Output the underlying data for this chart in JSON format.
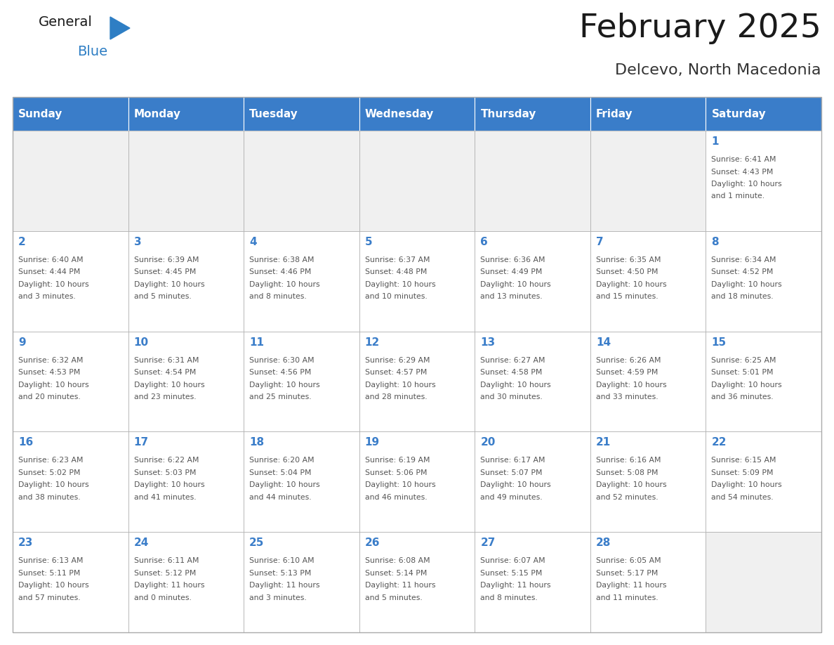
{
  "title": "February 2025",
  "subtitle": "Delcevo, North Macedonia",
  "days_of_week": [
    "Sunday",
    "Monday",
    "Tuesday",
    "Wednesday",
    "Thursday",
    "Friday",
    "Saturday"
  ],
  "header_bg": "#3A7DC9",
  "header_text": "#FFFFFF",
  "cell_bg": "#FFFFFF",
  "empty_cell_bg": "#F0F0F0",
  "cell_border": "#AAAAAA",
  "day_num_color": "#3A7DC9",
  "info_text_color": "#555555",
  "title_color": "#1a1a1a",
  "subtitle_color": "#333333",
  "logo_general_color": "#1a1a1a",
  "logo_blue_color": "#2E7EC4",
  "logo_triangle_color": "#2E7EC4",
  "background": "#FFFFFF",
  "weeks": [
    [
      {
        "day": null,
        "info": ""
      },
      {
        "day": null,
        "info": ""
      },
      {
        "day": null,
        "info": ""
      },
      {
        "day": null,
        "info": ""
      },
      {
        "day": null,
        "info": ""
      },
      {
        "day": null,
        "info": ""
      },
      {
        "day": 1,
        "info": "Sunrise: 6:41 AM\nSunset: 4:43 PM\nDaylight: 10 hours\nand 1 minute."
      }
    ],
    [
      {
        "day": 2,
        "info": "Sunrise: 6:40 AM\nSunset: 4:44 PM\nDaylight: 10 hours\nand 3 minutes."
      },
      {
        "day": 3,
        "info": "Sunrise: 6:39 AM\nSunset: 4:45 PM\nDaylight: 10 hours\nand 5 minutes."
      },
      {
        "day": 4,
        "info": "Sunrise: 6:38 AM\nSunset: 4:46 PM\nDaylight: 10 hours\nand 8 minutes."
      },
      {
        "day": 5,
        "info": "Sunrise: 6:37 AM\nSunset: 4:48 PM\nDaylight: 10 hours\nand 10 minutes."
      },
      {
        "day": 6,
        "info": "Sunrise: 6:36 AM\nSunset: 4:49 PM\nDaylight: 10 hours\nand 13 minutes."
      },
      {
        "day": 7,
        "info": "Sunrise: 6:35 AM\nSunset: 4:50 PM\nDaylight: 10 hours\nand 15 minutes."
      },
      {
        "day": 8,
        "info": "Sunrise: 6:34 AM\nSunset: 4:52 PM\nDaylight: 10 hours\nand 18 minutes."
      }
    ],
    [
      {
        "day": 9,
        "info": "Sunrise: 6:32 AM\nSunset: 4:53 PM\nDaylight: 10 hours\nand 20 minutes."
      },
      {
        "day": 10,
        "info": "Sunrise: 6:31 AM\nSunset: 4:54 PM\nDaylight: 10 hours\nand 23 minutes."
      },
      {
        "day": 11,
        "info": "Sunrise: 6:30 AM\nSunset: 4:56 PM\nDaylight: 10 hours\nand 25 minutes."
      },
      {
        "day": 12,
        "info": "Sunrise: 6:29 AM\nSunset: 4:57 PM\nDaylight: 10 hours\nand 28 minutes."
      },
      {
        "day": 13,
        "info": "Sunrise: 6:27 AM\nSunset: 4:58 PM\nDaylight: 10 hours\nand 30 minutes."
      },
      {
        "day": 14,
        "info": "Sunrise: 6:26 AM\nSunset: 4:59 PM\nDaylight: 10 hours\nand 33 minutes."
      },
      {
        "day": 15,
        "info": "Sunrise: 6:25 AM\nSunset: 5:01 PM\nDaylight: 10 hours\nand 36 minutes."
      }
    ],
    [
      {
        "day": 16,
        "info": "Sunrise: 6:23 AM\nSunset: 5:02 PM\nDaylight: 10 hours\nand 38 minutes."
      },
      {
        "day": 17,
        "info": "Sunrise: 6:22 AM\nSunset: 5:03 PM\nDaylight: 10 hours\nand 41 minutes."
      },
      {
        "day": 18,
        "info": "Sunrise: 6:20 AM\nSunset: 5:04 PM\nDaylight: 10 hours\nand 44 minutes."
      },
      {
        "day": 19,
        "info": "Sunrise: 6:19 AM\nSunset: 5:06 PM\nDaylight: 10 hours\nand 46 minutes."
      },
      {
        "day": 20,
        "info": "Sunrise: 6:17 AM\nSunset: 5:07 PM\nDaylight: 10 hours\nand 49 minutes."
      },
      {
        "day": 21,
        "info": "Sunrise: 6:16 AM\nSunset: 5:08 PM\nDaylight: 10 hours\nand 52 minutes."
      },
      {
        "day": 22,
        "info": "Sunrise: 6:15 AM\nSunset: 5:09 PM\nDaylight: 10 hours\nand 54 minutes."
      }
    ],
    [
      {
        "day": 23,
        "info": "Sunrise: 6:13 AM\nSunset: 5:11 PM\nDaylight: 10 hours\nand 57 minutes."
      },
      {
        "day": 24,
        "info": "Sunrise: 6:11 AM\nSunset: 5:12 PM\nDaylight: 11 hours\nand 0 minutes."
      },
      {
        "day": 25,
        "info": "Sunrise: 6:10 AM\nSunset: 5:13 PM\nDaylight: 11 hours\nand 3 minutes."
      },
      {
        "day": 26,
        "info": "Sunrise: 6:08 AM\nSunset: 5:14 PM\nDaylight: 11 hours\nand 5 minutes."
      },
      {
        "day": 27,
        "info": "Sunrise: 6:07 AM\nSunset: 5:15 PM\nDaylight: 11 hours\nand 8 minutes."
      },
      {
        "day": 28,
        "info": "Sunrise: 6:05 AM\nSunset: 5:17 PM\nDaylight: 11 hours\nand 11 minutes."
      },
      {
        "day": null,
        "info": ""
      }
    ]
  ]
}
